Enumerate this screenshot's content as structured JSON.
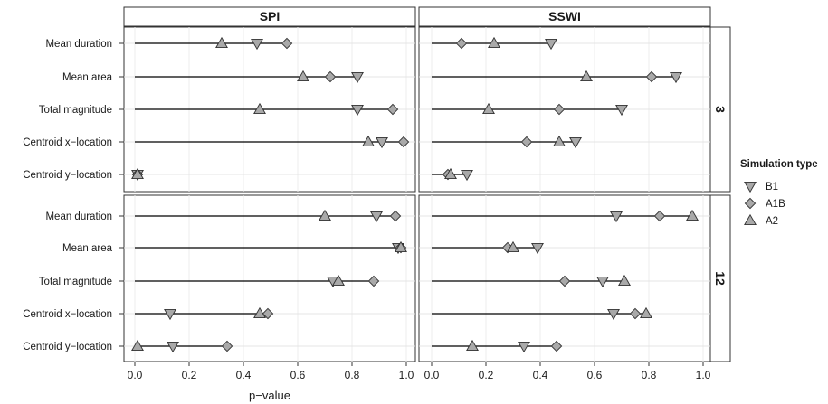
{
  "chart_data": {
    "type": "dot",
    "xlabel": "p−value",
    "xlim": [
      0,
      1
    ],
    "xticks": [
      0.0,
      0.2,
      0.4,
      0.6,
      0.8,
      1.0
    ],
    "xtick_labels": [
      "0.0",
      "0.2",
      "0.4",
      "0.6",
      "0.8",
      "1.0"
    ],
    "columns": [
      "SPI",
      "SSWI"
    ],
    "rows": [
      "3",
      "12"
    ],
    "categories": [
      "Mean duration",
      "Mean area",
      "Total magnitude",
      "Centroid x−location",
      "Centroid y−location"
    ],
    "legend": {
      "title": "Simulation type",
      "position": "right",
      "entries": [
        {
          "name": "B1",
          "shape": "triangle-down"
        },
        {
          "name": "A1B",
          "shape": "diamond"
        },
        {
          "name": "A2",
          "shape": "triangle-up"
        }
      ]
    },
    "marker_fill": "#a9a9a9",
    "panels": [
      {
        "column": "SPI",
        "row": "3",
        "series": [
          {
            "name": "B1",
            "values": [
              0.45,
              0.82,
              0.82,
              0.91,
              0.01
            ]
          },
          {
            "name": "A1B",
            "values": [
              0.56,
              0.72,
              0.95,
              0.99,
              0.01
            ]
          },
          {
            "name": "A2",
            "values": [
              0.32,
              0.62,
              0.46,
              0.86,
              0.01
            ]
          }
        ]
      },
      {
        "column": "SSWI",
        "row": "3",
        "series": [
          {
            "name": "B1",
            "values": [
              0.44,
              0.9,
              0.7,
              0.53,
              0.13
            ]
          },
          {
            "name": "A1B",
            "values": [
              0.11,
              0.81,
              0.47,
              0.35,
              0.06
            ]
          },
          {
            "name": "A2",
            "values": [
              0.23,
              0.57,
              0.21,
              0.47,
              0.07
            ]
          }
        ]
      },
      {
        "column": "SPI",
        "row": "12",
        "series": [
          {
            "name": "B1",
            "values": [
              0.89,
              0.97,
              0.73,
              0.13,
              0.14
            ]
          },
          {
            "name": "A1B",
            "values": [
              0.96,
              0.98,
              0.88,
              0.49,
              0.34
            ]
          },
          {
            "name": "A2",
            "values": [
              0.7,
              0.98,
              0.75,
              0.46,
              0.01
            ]
          }
        ]
      },
      {
        "column": "SSWI",
        "row": "12",
        "series": [
          {
            "name": "B1",
            "values": [
              0.68,
              0.39,
              0.63,
              0.67,
              0.34
            ]
          },
          {
            "name": "A1B",
            "values": [
              0.84,
              0.28,
              0.49,
              0.75,
              0.46
            ]
          },
          {
            "name": "A2",
            "values": [
              0.96,
              0.3,
              0.71,
              0.79,
              0.15
            ]
          }
        ]
      }
    ]
  }
}
